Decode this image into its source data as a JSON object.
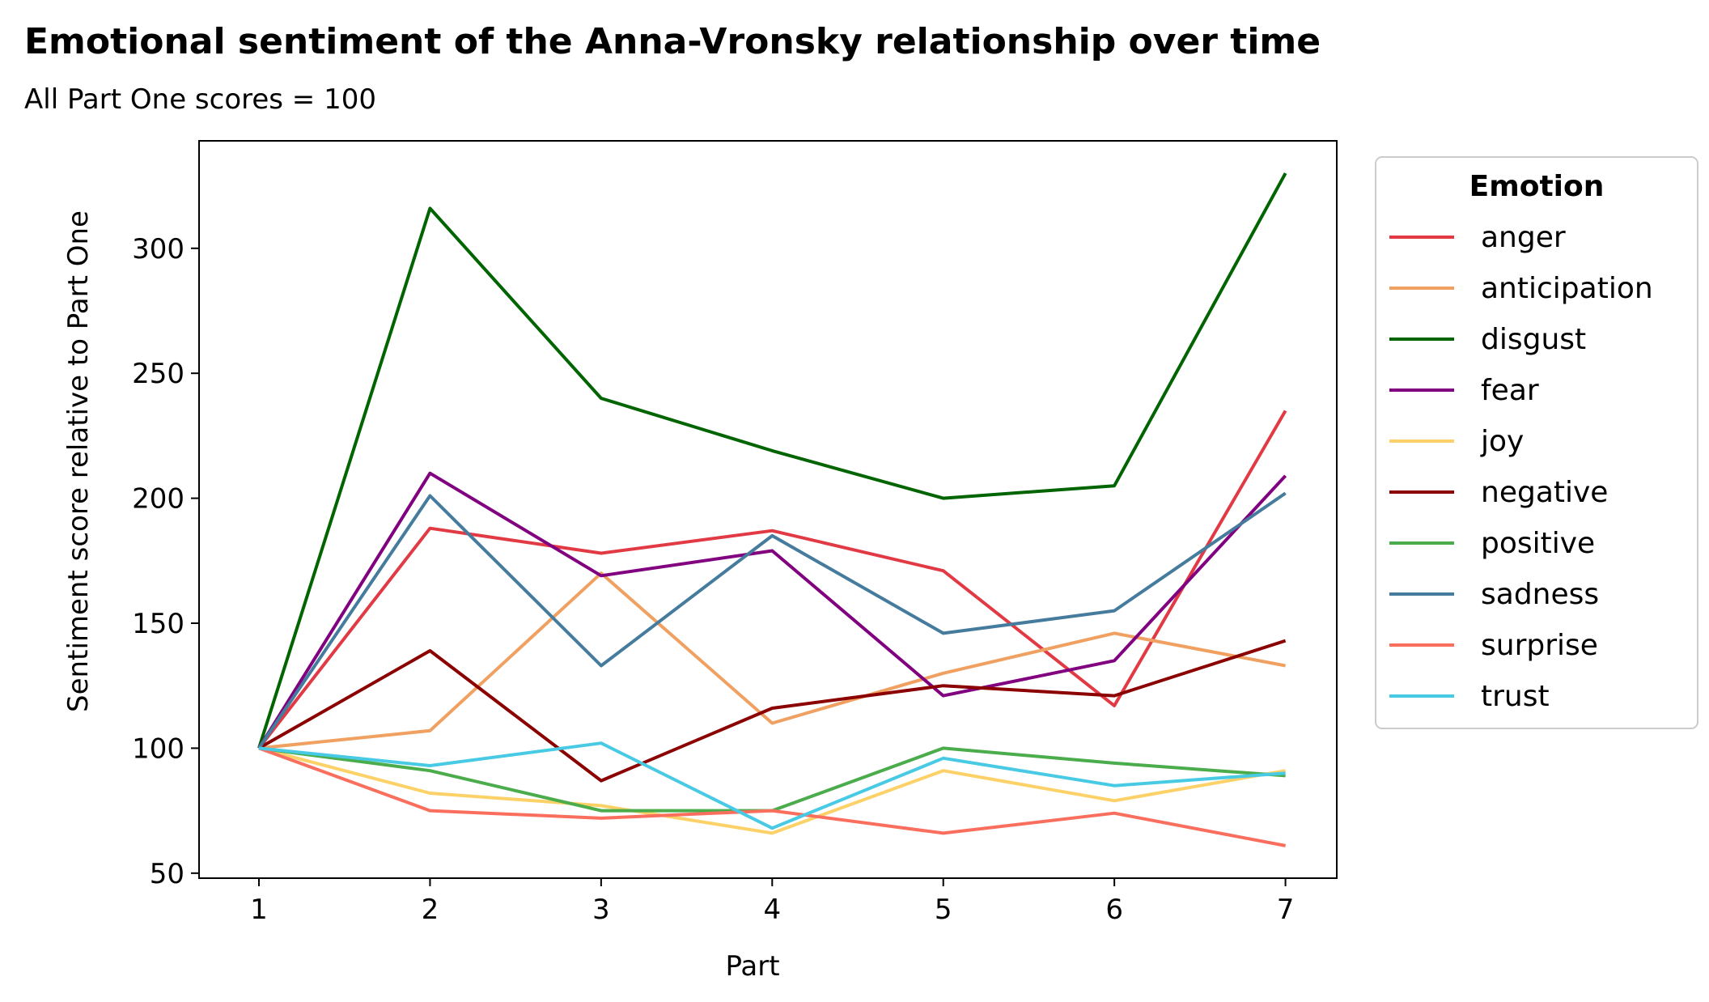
{
  "chart_data": {
    "type": "line",
    "title": "Emotional sentiment of the Anna-Vronsky relationship over time",
    "subtitle": "All Part One scores = 100",
    "xlabel": "Part",
    "ylabel": "Sentiment score relative to Part One",
    "x": [
      1,
      2,
      3,
      4,
      5,
      6,
      7
    ],
    "xticks": [
      "1",
      "2",
      "3",
      "4",
      "5",
      "6",
      "7"
    ],
    "yticks": [
      50,
      100,
      150,
      200,
      250,
      300
    ],
    "xlim": [
      0.65,
      7.3
    ],
    "ylim": [
      48,
      343
    ],
    "grid": false,
    "legend": {
      "title": "Emotion",
      "placement": "outside-right"
    },
    "series": [
      {
        "name": "anger",
        "color": "#e23a44",
        "values": [
          100,
          188,
          178,
          187,
          171,
          117,
          235
        ]
      },
      {
        "name": "anticipation",
        "color": "#f0a060",
        "values": [
          100,
          107,
          170,
          110,
          130,
          146,
          133
        ]
      },
      {
        "name": "disgust",
        "color": "#006400",
        "values": [
          100,
          316,
          240,
          219,
          200,
          205,
          330
        ]
      },
      {
        "name": "fear",
        "color": "#800080",
        "values": [
          100,
          210,
          169,
          179,
          121,
          135,
          209
        ]
      },
      {
        "name": "joy",
        "color": "#fcd168",
        "values": [
          100,
          82,
          77,
          66,
          91,
          79,
          91
        ]
      },
      {
        "name": "negative",
        "color": "#8b0000",
        "values": [
          100,
          139,
          87,
          116,
          125,
          121,
          143
        ]
      },
      {
        "name": "positive",
        "color": "#4aac4a",
        "values": [
          100,
          91,
          75,
          75,
          100,
          94,
          89
        ]
      },
      {
        "name": "sadness",
        "color": "#457b9d",
        "values": [
          100,
          201,
          133,
          185,
          146,
          155,
          202
        ]
      },
      {
        "name": "surprise",
        "color": "#fa6e5e",
        "values": [
          100,
          75,
          72,
          75,
          66,
          74,
          61
        ]
      },
      {
        "name": "trust",
        "color": "#48cae4",
        "values": [
          100,
          93,
          102,
          68,
          96,
          85,
          90
        ]
      }
    ]
  }
}
